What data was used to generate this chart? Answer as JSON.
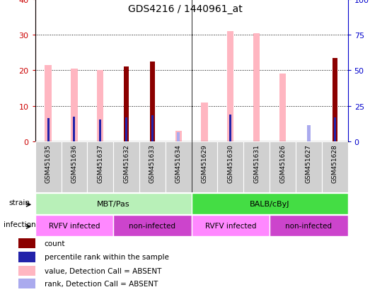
{
  "title": "GDS4216 / 1440961_at",
  "samples": [
    "GSM451635",
    "GSM451636",
    "GSM451637",
    "GSM451632",
    "GSM451633",
    "GSM451634",
    "GSM451629",
    "GSM451630",
    "GSM451631",
    "GSM451626",
    "GSM451627",
    "GSM451628"
  ],
  "count_values": [
    0,
    0,
    0,
    21,
    22.5,
    0,
    0,
    0,
    0,
    0,
    0,
    23.5
  ],
  "percentile_values": [
    16.5,
    17.5,
    15.5,
    17,
    18.5,
    0,
    0,
    19,
    0,
    0,
    0,
    17
  ],
  "absent_value_values": [
    21.5,
    20.5,
    20,
    0,
    0,
    3,
    11,
    31,
    30.5,
    19,
    0,
    0
  ],
  "absent_rank_values": [
    0,
    0,
    0,
    0,
    0,
    6.5,
    0,
    0,
    0,
    0,
    11.5,
    0
  ],
  "strain_groups": [
    {
      "label": "MBT/Pas",
      "start": 0,
      "end": 6,
      "color": "#B8F0B8"
    },
    {
      "label": "BALB/cByJ",
      "start": 6,
      "end": 12,
      "color": "#44DD44"
    }
  ],
  "infection_groups": [
    {
      "label": "RVFV infected",
      "start": 0,
      "end": 3,
      "color": "#FF88FF"
    },
    {
      "label": "non-infected",
      "start": 3,
      "end": 6,
      "color": "#CC44CC"
    },
    {
      "label": "RVFV infected",
      "start": 6,
      "end": 9,
      "color": "#FF88FF"
    },
    {
      "label": "non-infected",
      "start": 9,
      "end": 12,
      "color": "#CC44CC"
    }
  ],
  "ylim_left": [
    0,
    40
  ],
  "ylim_right": [
    0,
    100
  ],
  "yticks_left": [
    0,
    10,
    20,
    30,
    40
  ],
  "yticks_right": [
    0,
    25,
    50,
    75,
    100
  ],
  "left_axis_color": "#CC0000",
  "right_axis_color": "#0000CC",
  "count_color": "#8B0000",
  "percentile_color": "#2222AA",
  "absent_value_color": "#FFB6C1",
  "absent_rank_color": "#AAAAEE",
  "legend_items": [
    {
      "label": "count",
      "color": "#8B0000"
    },
    {
      "label": "percentile rank within the sample",
      "color": "#2222AA"
    },
    {
      "label": "value, Detection Call = ABSENT",
      "color": "#FFB6C1"
    },
    {
      "label": "rank, Detection Call = ABSENT",
      "color": "#AAAAEE"
    }
  ]
}
